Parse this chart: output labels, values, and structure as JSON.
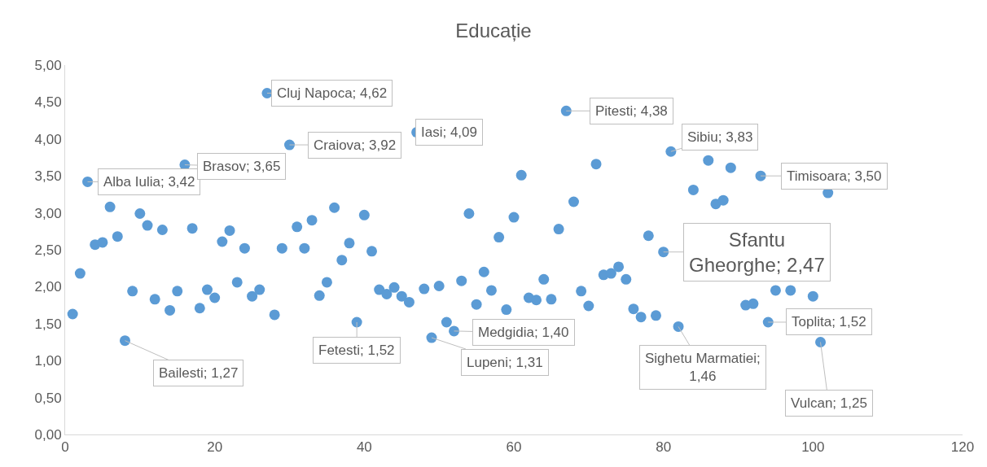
{
  "chart_data": {
    "type": "scatter",
    "title": "Educație",
    "color": "#5b9bd5",
    "marker": "circle",
    "x": [
      1,
      2,
      3,
      4,
      5,
      6,
      7,
      8,
      9,
      10,
      11,
      12,
      13,
      14,
      15,
      16,
      17,
      18,
      19,
      20,
      21,
      22,
      23,
      24,
      25,
      26,
      27,
      28,
      29,
      30,
      31,
      32,
      33,
      34,
      35,
      36,
      37,
      38,
      39,
      40,
      41,
      42,
      43,
      44,
      45,
      46,
      47,
      48,
      49,
      50,
      51,
      52,
      53,
      54,
      55,
      56,
      57,
      58,
      59,
      60,
      61,
      62,
      63,
      64,
      65,
      66,
      67,
      68,
      69,
      70,
      71,
      72,
      73,
      74,
      75,
      76,
      77,
      78,
      79,
      80,
      81,
      82,
      84,
      86,
      87,
      88,
      89,
      91,
      92,
      93,
      94,
      95,
      97,
      100,
      101,
      102
    ],
    "values": [
      1.63,
      2.18,
      3.42,
      2.57,
      2.6,
      3.08,
      2.68,
      1.27,
      1.94,
      2.99,
      2.83,
      1.83,
      2.77,
      1.68,
      1.94,
      3.65,
      2.79,
      1.71,
      1.96,
      1.85,
      2.61,
      2.76,
      2.06,
      2.52,
      1.87,
      1.96,
      4.62,
      1.62,
      2.52,
      3.92,
      2.81,
      2.52,
      2.9,
      1.88,
      2.06,
      3.07,
      2.36,
      2.59,
      1.52,
      2.97,
      2.48,
      1.96,
      1.9,
      1.99,
      1.87,
      1.79,
      4.09,
      1.97,
      1.31,
      2.01,
      1.52,
      1.4,
      2.08,
      2.99,
      1.76,
      2.2,
      1.95,
      2.67,
      1.69,
      2.94,
      3.51,
      1.85,
      1.82,
      2.1,
      1.83,
      2.78,
      4.38,
      3.15,
      1.94,
      1.74,
      3.66,
      2.16,
      2.18,
      2.27,
      2.1,
      1.7,
      1.59,
      2.69,
      1.61,
      2.47,
      3.83,
      1.46,
      3.31,
      3.71,
      3.12,
      3.17,
      3.61,
      1.75,
      1.77,
      3.5,
      1.52,
      1.95,
      1.95,
      1.87,
      1.25,
      3.27
    ],
    "xlim": [
      0,
      120
    ],
    "xticks": [
      0,
      20,
      40,
      60,
      80,
      100,
      120
    ],
    "ylim": [
      0,
      5
    ],
    "yticks": [
      {
        "value": 0,
        "label": "0,00"
      },
      {
        "value": 0.5,
        "label": "0,50"
      },
      {
        "value": 1,
        "label": "1,00"
      },
      {
        "value": 1.5,
        "label": "1,50"
      },
      {
        "value": 2,
        "label": "2,00"
      },
      {
        "value": 2.5,
        "label": "2,50"
      },
      {
        "value": 3,
        "label": "3,00"
      },
      {
        "value": 3.5,
        "label": "3,50"
      },
      {
        "value": 4,
        "label": "4,00"
      },
      {
        "value": 4.5,
        "label": "4,50"
      },
      {
        "value": 5,
        "label": "5,00"
      }
    ],
    "annotations": [
      {
        "text": "Alba Iulia; 3,42",
        "x": 3,
        "y": 3.42
      },
      {
        "text": "Bailesti; 1,27",
        "x": 8,
        "y": 1.27
      },
      {
        "text": "Brasov; 3,65",
        "x": 16,
        "y": 3.65
      },
      {
        "text": "Cluj Napoca; 4,62",
        "x": 27,
        "y": 4.62
      },
      {
        "text": "Craiova; 3,92",
        "x": 30,
        "y": 3.92
      },
      {
        "text": "Fetesti; 1,52",
        "x": 39,
        "y": 1.52
      },
      {
        "text": "Iasi; 4,09",
        "x": 47,
        "y": 4.09
      },
      {
        "text": "Lupeni; 1,31",
        "x": 49,
        "y": 1.31
      },
      {
        "text": "Medgidia; 1,40",
        "x": 52,
        "y": 1.4
      },
      {
        "text": "Pitesti; 4,38",
        "x": 67,
        "y": 4.38
      },
      {
        "text": "Sfantu Gheorghe; 2,47",
        "x": 80,
        "y": 2.47
      },
      {
        "text": "Sibiu; 3,83",
        "x": 81,
        "y": 3.83
      },
      {
        "text": "Sighetu Marmatiei; 1,46",
        "x": 82,
        "y": 1.46
      },
      {
        "text": "Timisoara; 3,50",
        "x": 93,
        "y": 3.5
      },
      {
        "text": "Toplita; 1,52",
        "x": 94,
        "y": 1.52
      },
      {
        "text": "Vulcan; 1,25",
        "x": 101,
        "y": 1.25
      }
    ]
  }
}
